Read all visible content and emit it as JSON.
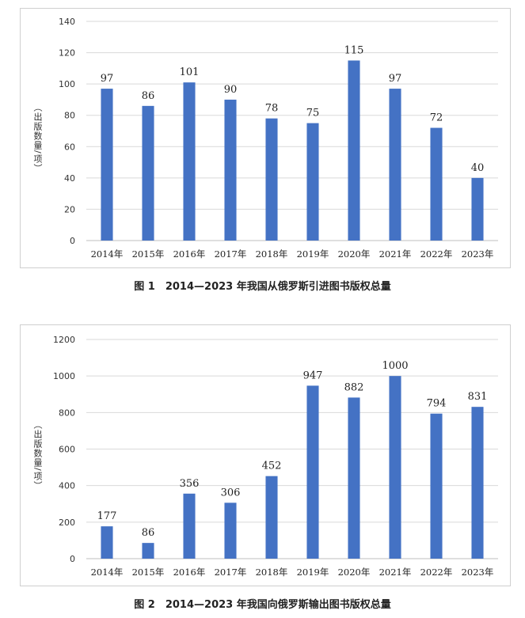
{
  "chart_data": [
    {
      "type": "bar",
      "caption": "图 1　2014—2023 年我国从俄罗斯引进图书版权总量",
      "ylabel": "（出版数量/项）",
      "categories": [
        "2014年",
        "2015年",
        "2016年",
        "2017年",
        "2018年",
        "2019年",
        "2020年",
        "2021年",
        "2022年",
        "2023年"
      ],
      "values": [
        97,
        86,
        101,
        90,
        78,
        75,
        115,
        97,
        72,
        40
      ],
      "ylim": [
        0,
        140
      ],
      "yticks": [
        0,
        20,
        40,
        60,
        80,
        100,
        120,
        140
      ],
      "grid": true,
      "bar_color": "#4472C4"
    },
    {
      "type": "bar",
      "caption": "图 2　2014—2023 年我国向俄罗斯输出图书版权总量",
      "ylabel": "（出版数量/项）",
      "categories": [
        "2014年",
        "2015年",
        "2016年",
        "2017年",
        "2018年",
        "2019年",
        "2020年",
        "2021年",
        "2022年",
        "2023年"
      ],
      "values": [
        177,
        86,
        356,
        306,
        452,
        947,
        882,
        1000,
        794,
        831
      ],
      "ylim": [
        0,
        1200
      ],
      "yticks": [
        0,
        200,
        400,
        600,
        800,
        1000,
        1200
      ],
      "grid": true,
      "bar_color": "#4472C4"
    }
  ]
}
